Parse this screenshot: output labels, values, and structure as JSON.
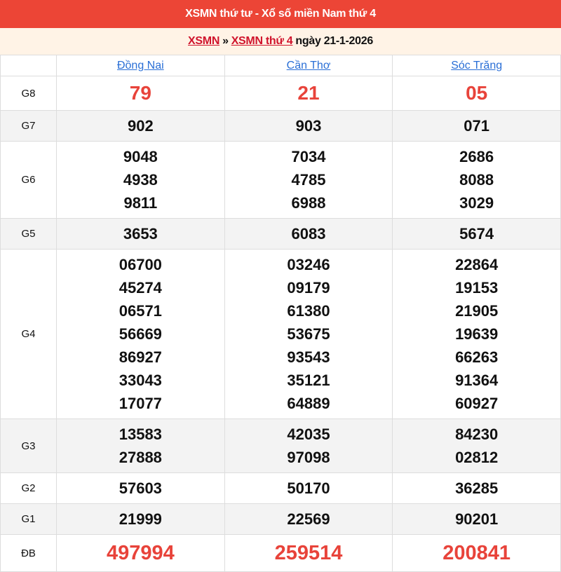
{
  "title": "XSMN thứ tư - Xổ số miền Nam thứ 4",
  "breadcrumb": {
    "link1": "XSMN",
    "sep": "»",
    "link2": "XSMN thứ 4",
    "date": "ngày 21-1-2026"
  },
  "provinces": [
    "Đồng Nai",
    "Cần Thơ",
    "Sóc Trăng"
  ],
  "rows": [
    {
      "label": "G8",
      "style": "big",
      "values": [
        [
          "79"
        ],
        [
          "21"
        ],
        [
          "05"
        ]
      ]
    },
    {
      "label": "G7",
      "style": "n",
      "values": [
        [
          "902"
        ],
        [
          "903"
        ],
        [
          "071"
        ]
      ]
    },
    {
      "label": "G6",
      "style": "n",
      "values": [
        [
          "9048",
          "4938",
          "9811"
        ],
        [
          "7034",
          "4785",
          "6988"
        ],
        [
          "2686",
          "8088",
          "3029"
        ]
      ]
    },
    {
      "label": "G5",
      "style": "n",
      "values": [
        [
          "3653"
        ],
        [
          "6083"
        ],
        [
          "5674"
        ]
      ]
    },
    {
      "label": "G4",
      "style": "n",
      "values": [
        [
          "06700",
          "45274",
          "06571",
          "56669",
          "86927",
          "33043",
          "17077"
        ],
        [
          "03246",
          "09179",
          "61380",
          "53675",
          "93543",
          "35121",
          "64889"
        ],
        [
          "22864",
          "19153",
          "21905",
          "19639",
          "66263",
          "91364",
          "60927"
        ]
      ]
    },
    {
      "label": "G3",
      "style": "n",
      "values": [
        [
          "13583",
          "27888"
        ],
        [
          "42035",
          "97098"
        ],
        [
          "84230",
          "02812"
        ]
      ]
    },
    {
      "label": "G2",
      "style": "n",
      "values": [
        [
          "57603"
        ],
        [
          "50170"
        ],
        [
          "36285"
        ]
      ]
    },
    {
      "label": "G1",
      "style": "n",
      "values": [
        [
          "21999"
        ],
        [
          "22569"
        ],
        [
          "90201"
        ]
      ]
    },
    {
      "label": "ĐB",
      "style": "db",
      "values": [
        [
          "497994"
        ],
        [
          "259514"
        ],
        [
          "200841"
        ]
      ]
    }
  ],
  "colors": {
    "header_bg": "#ec4536",
    "sub_bg": "#fff3e6",
    "prize_red": "#e8433a",
    "link_blue": "#2a6fd6"
  }
}
